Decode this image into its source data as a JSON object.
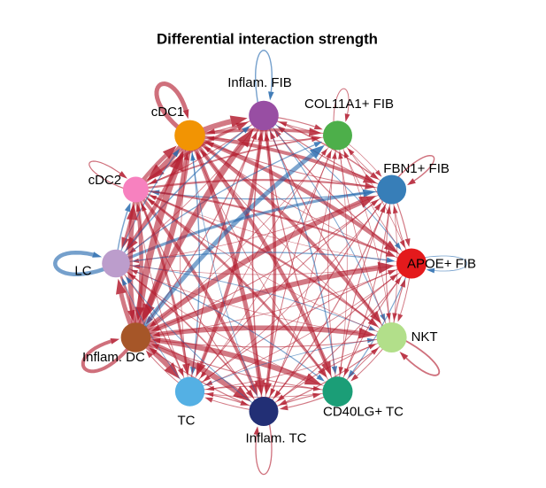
{
  "figure": {
    "title": "Differential interaction strength"
  },
  "chart_data": {
    "type": "network-circle",
    "title": "Differential interaction strength",
    "edge_color_meaning": {
      "red": "increased interaction strength",
      "blue": "decreased interaction strength"
    },
    "edge_colors": {
      "red": "#b2182b",
      "blue": "#2166ac"
    },
    "layout": {
      "center": [
        298,
        297.5
      ],
      "radius": 167,
      "start_angle_deg": 0,
      "direction": "counterclockwise"
    },
    "nodes": [
      {
        "label": "APOE+ FIB",
        "color": "#E41A1C",
        "radius": 17.0,
        "self_loop": {
          "color": "blue",
          "width": 0.8,
          "ext": 42
        }
      },
      {
        "label": "FBN1+ FIB",
        "color": "#377EB8",
        "radius": 16.5,
        "self_loop": {
          "color": "red",
          "width": 1.4,
          "ext": 40,
          "angle_offset": 8
        }
      },
      {
        "label": "COL11A1+ FIB",
        "color": "#4DAF4A",
        "radius": 16.5,
        "self_loop": {
          "color": "red",
          "width": 1.0,
          "ext": 34,
          "angle_offset": 22
        }
      },
      {
        "label": "Inflam. FIB",
        "color": "#984EA3",
        "radius": 16.8,
        "self_loop": {
          "color": "blue",
          "width": 1.4,
          "ext": 52
        }
      },
      {
        "label": "cDC1",
        "color": "#F29403",
        "radius": 17.3,
        "self_loop": {
          "color": "red",
          "width": 5.0,
          "ext": 52
        }
      },
      {
        "label": "cDC2",
        "color": "#F781BF",
        "radius": 14.5,
        "self_loop": {
          "color": "red",
          "width": 1.2,
          "ext": 42
        }
      },
      {
        "label": "LC",
        "color": "#BC9DCC",
        "radius": 15.8,
        "self_loop": {
          "color": "blue",
          "width": 4.5,
          "ext": 56
        }
      },
      {
        "label": "Inflam. DC",
        "color": "#A65628",
        "radius": 16.8,
        "self_loop": {
          "color": "red",
          "width": 4.0,
          "ext": 54
        }
      },
      {
        "label": "TC",
        "color": "#54B0E4",
        "radius": 16.6,
        "self_loop": null
      },
      {
        "label": "Inflam. TC",
        "color": "#222F75",
        "radius": 16.5,
        "self_loop": {
          "color": "red",
          "width": 1.3,
          "ext": 50
        }
      },
      {
        "label": "CD40LG+ TC",
        "color": "#1B9E77",
        "radius": 17.0,
        "self_loop": null
      },
      {
        "label": "NKT",
        "color": "#B2DF8A",
        "radius": 17.0,
        "self_loop": {
          "color": "red",
          "width": 1.8,
          "ext": 46,
          "angle_offset": -8
        }
      }
    ],
    "edges": [
      {
        "source": "APOE+ FIB",
        "target": "FBN1+ FIB",
        "width": 1.0,
        "color": "red"
      },
      {
        "source": "APOE+ FIB",
        "target": "COL11A1+ FIB",
        "width": 0.7,
        "color": "red"
      },
      {
        "source": "APOE+ FIB",
        "target": "Inflam. FIB",
        "width": 1.2,
        "color": "red"
      },
      {
        "source": "APOE+ FIB",
        "target": "cDC1",
        "width": 0.8,
        "color": "red"
      },
      {
        "source": "APOE+ FIB",
        "target": "cDC2",
        "width": 0.6,
        "color": "red"
      },
      {
        "source": "APOE+ FIB",
        "target": "LC",
        "width": 0.7,
        "color": "red"
      },
      {
        "source": "APOE+ FIB",
        "target": "Inflam. DC",
        "width": 0.8,
        "color": "red"
      },
      {
        "source": "APOE+ FIB",
        "target": "TC",
        "width": 0.8,
        "color": "red"
      },
      {
        "source": "APOE+ FIB",
        "target": "Inflam. TC",
        "width": 1.0,
        "color": "red"
      },
      {
        "source": "APOE+ FIB",
        "target": "CD40LG+ TC",
        "width": 1.2,
        "color": "blue"
      },
      {
        "source": "APOE+ FIB",
        "target": "NKT",
        "width": 1.0,
        "color": "red"
      },
      {
        "source": "FBN1+ FIB",
        "target": "APOE+ FIB",
        "width": 1.2,
        "color": "red"
      },
      {
        "source": "FBN1+ FIB",
        "target": "COL11A1+ FIB",
        "width": 0.8,
        "color": "red"
      },
      {
        "source": "FBN1+ FIB",
        "target": "Inflam. FIB",
        "width": 1.2,
        "color": "red"
      },
      {
        "source": "FBN1+ FIB",
        "target": "cDC1",
        "width": 1.0,
        "color": "red"
      },
      {
        "source": "FBN1+ FIB",
        "target": "cDC2",
        "width": 1.4,
        "color": "blue"
      },
      {
        "source": "FBN1+ FIB",
        "target": "LC",
        "width": 0.7,
        "color": "red"
      },
      {
        "source": "FBN1+ FIB",
        "target": "Inflam. DC",
        "width": 1.0,
        "color": "red"
      },
      {
        "source": "FBN1+ FIB",
        "target": "TC",
        "width": 0.8,
        "color": "red"
      },
      {
        "source": "FBN1+ FIB",
        "target": "Inflam. TC",
        "width": 1.2,
        "color": "red"
      },
      {
        "source": "FBN1+ FIB",
        "target": "CD40LG+ TC",
        "width": 1.0,
        "color": "red"
      },
      {
        "source": "FBN1+ FIB",
        "target": "NKT",
        "width": 0.8,
        "color": "red"
      },
      {
        "source": "COL11A1+ FIB",
        "target": "APOE+ FIB",
        "width": 0.8,
        "color": "red"
      },
      {
        "source": "COL11A1+ FIB",
        "target": "FBN1+ FIB",
        "width": 0.7,
        "color": "red"
      },
      {
        "source": "COL11A1+ FIB",
        "target": "Inflam. FIB",
        "width": 1.0,
        "color": "red"
      },
      {
        "source": "COL11A1+ FIB",
        "target": "cDC1",
        "width": 0.7,
        "color": "red"
      },
      {
        "source": "COL11A1+ FIB",
        "target": "Inflam. DC",
        "width": 0.7,
        "color": "red"
      },
      {
        "source": "COL11A1+ FIB",
        "target": "TC",
        "width": 0.7,
        "color": "red"
      },
      {
        "source": "COL11A1+ FIB",
        "target": "Inflam. TC",
        "width": 0.8,
        "color": "red"
      },
      {
        "source": "COL11A1+ FIB",
        "target": "CD40LG+ TC",
        "width": 0.7,
        "color": "red"
      },
      {
        "source": "COL11A1+ FIB",
        "target": "NKT",
        "width": 0.7,
        "color": "red"
      },
      {
        "source": "Inflam. FIB",
        "target": "APOE+ FIB",
        "width": 1.0,
        "color": "blue"
      },
      {
        "source": "Inflam. FIB",
        "target": "FBN1+ FIB",
        "width": 1.5,
        "color": "red"
      },
      {
        "source": "Inflam. FIB",
        "target": "COL11A1+ FIB",
        "width": 1.2,
        "color": "red"
      },
      {
        "source": "Inflam. FIB",
        "target": "cDC1",
        "width": 1.2,
        "color": "red"
      },
      {
        "source": "Inflam. FIB",
        "target": "cDC2",
        "width": 1.0,
        "color": "red"
      },
      {
        "source": "Inflam. FIB",
        "target": "LC",
        "width": 0.8,
        "color": "red"
      },
      {
        "source": "Inflam. FIB",
        "target": "Inflam. DC",
        "width": 1.2,
        "color": "red"
      },
      {
        "source": "Inflam. FIB",
        "target": "TC",
        "width": 4.0,
        "color": "red"
      },
      {
        "source": "Inflam. FIB",
        "target": "Inflam. TC",
        "width": 3.5,
        "color": "red"
      },
      {
        "source": "Inflam. FIB",
        "target": "CD40LG+ TC",
        "width": 1.4,
        "color": "blue"
      },
      {
        "source": "Inflam. FIB",
        "target": "NKT",
        "width": 1.0,
        "color": "blue"
      },
      {
        "source": "cDC1",
        "target": "APOE+ FIB",
        "width": 4.5,
        "color": "red"
      },
      {
        "source": "cDC1",
        "target": "FBN1+ FIB",
        "width": 4.0,
        "color": "red"
      },
      {
        "source": "cDC1",
        "target": "COL11A1+ FIB",
        "width": 3.5,
        "color": "red"
      },
      {
        "source": "cDC1",
        "target": "Inflam. FIB",
        "width": 6.0,
        "color": "red"
      },
      {
        "source": "cDC1",
        "target": "cDC2",
        "width": 6.5,
        "color": "red"
      },
      {
        "source": "cDC1",
        "target": "LC",
        "width": 4.5,
        "color": "red"
      },
      {
        "source": "cDC1",
        "target": "Inflam. DC",
        "width": 6.5,
        "color": "red"
      },
      {
        "source": "cDC1",
        "target": "TC",
        "width": 1.4,
        "color": "blue"
      },
      {
        "source": "cDC1",
        "target": "Inflam. TC",
        "width": 5.0,
        "color": "red"
      },
      {
        "source": "cDC1",
        "target": "CD40LG+ TC",
        "width": 4.5,
        "color": "red"
      },
      {
        "source": "cDC1",
        "target": "NKT",
        "width": 4.0,
        "color": "red"
      },
      {
        "source": "cDC2",
        "target": "APOE+ FIB",
        "width": 2.2,
        "color": "red"
      },
      {
        "source": "cDC2",
        "target": "FBN1+ FIB",
        "width": 2.2,
        "color": "red"
      },
      {
        "source": "cDC2",
        "target": "COL11A1+ FIB",
        "width": 1.8,
        "color": "red"
      },
      {
        "source": "cDC2",
        "target": "Inflam. FIB",
        "width": 3.2,
        "color": "red"
      },
      {
        "source": "cDC2",
        "target": "cDC1",
        "width": 4.5,
        "color": "red"
      },
      {
        "source": "cDC2",
        "target": "LC",
        "width": 3.0,
        "color": "red"
      },
      {
        "source": "cDC2",
        "target": "Inflam. DC",
        "width": 4.5,
        "color": "red"
      },
      {
        "source": "cDC2",
        "target": "TC",
        "width": 2.8,
        "color": "red"
      },
      {
        "source": "cDC2",
        "target": "Inflam. TC",
        "width": 3.8,
        "color": "red"
      },
      {
        "source": "cDC2",
        "target": "CD40LG+ TC",
        "width": 2.8,
        "color": "red"
      },
      {
        "source": "cDC2",
        "target": "NKT",
        "width": 2.2,
        "color": "red"
      },
      {
        "source": "LC",
        "target": "APOE+ FIB",
        "width": 1.3,
        "color": "blue"
      },
      {
        "source": "LC",
        "target": "FBN1+ FIB",
        "width": 3.2,
        "color": "blue"
      },
      {
        "source": "LC",
        "target": "COL11A1+ FIB",
        "width": 1.3,
        "color": "blue"
      },
      {
        "source": "LC",
        "target": "Inflam. FIB",
        "width": 1.5,
        "color": "blue"
      },
      {
        "source": "LC",
        "target": "cDC1",
        "width": 1.2,
        "color": "blue"
      },
      {
        "source": "LC",
        "target": "cDC2",
        "width": 1.5,
        "color": "blue"
      },
      {
        "source": "LC",
        "target": "Inflam. DC",
        "width": 2.8,
        "color": "red"
      },
      {
        "source": "LC",
        "target": "TC",
        "width": 1.2,
        "color": "red"
      },
      {
        "source": "LC",
        "target": "Inflam. TC",
        "width": 1.6,
        "color": "red"
      },
      {
        "source": "LC",
        "target": "CD40LG+ TC",
        "width": 1.2,
        "color": "blue"
      },
      {
        "source": "LC",
        "target": "NKT",
        "width": 0.9,
        "color": "blue"
      },
      {
        "source": "Inflam. DC",
        "target": "APOE+ FIB",
        "width": 6.0,
        "color": "red"
      },
      {
        "source": "Inflam. DC",
        "target": "FBN1+ FIB",
        "width": 6.0,
        "color": "red"
      },
      {
        "source": "Inflam. DC",
        "target": "COL11A1+ FIB",
        "width": 5.0,
        "color": "blue"
      },
      {
        "source": "Inflam. DC",
        "target": "Inflam. FIB",
        "width": 7.0,
        "color": "red"
      },
      {
        "source": "Inflam. DC",
        "target": "cDC1",
        "width": 7.5,
        "color": "red"
      },
      {
        "source": "Inflam. DC",
        "target": "cDC2",
        "width": 5.5,
        "color": "red"
      },
      {
        "source": "Inflam. DC",
        "target": "LC",
        "width": 5.0,
        "color": "red"
      },
      {
        "source": "Inflam. DC",
        "target": "TC",
        "width": 6.0,
        "color": "red"
      },
      {
        "source": "Inflam. DC",
        "target": "Inflam. TC",
        "width": 6.5,
        "color": "red"
      },
      {
        "source": "Inflam. DC",
        "target": "CD40LG+ TC",
        "width": 6.0,
        "color": "red"
      },
      {
        "source": "Inflam. DC",
        "target": "NKT",
        "width": 5.5,
        "color": "red"
      },
      {
        "source": "TC",
        "target": "APOE+ FIB",
        "width": 1.0,
        "color": "red"
      },
      {
        "source": "TC",
        "target": "FBN1+ FIB",
        "width": 1.0,
        "color": "red"
      },
      {
        "source": "TC",
        "target": "COL11A1+ FIB",
        "width": 0.8,
        "color": "red"
      },
      {
        "source": "TC",
        "target": "Inflam. FIB",
        "width": 1.2,
        "color": "red"
      },
      {
        "source": "TC",
        "target": "cDC1",
        "width": 0.8,
        "color": "red"
      },
      {
        "source": "TC",
        "target": "cDC2",
        "width": 0.8,
        "color": "red"
      },
      {
        "source": "TC",
        "target": "LC",
        "width": 0.8,
        "color": "blue"
      },
      {
        "source": "TC",
        "target": "Inflam. DC",
        "width": 1.0,
        "color": "red"
      },
      {
        "source": "TC",
        "target": "Inflam. TC",
        "width": 1.2,
        "color": "red"
      },
      {
        "source": "TC",
        "target": "CD40LG+ TC",
        "width": 1.0,
        "color": "red"
      },
      {
        "source": "TC",
        "target": "NKT",
        "width": 0.8,
        "color": "blue"
      },
      {
        "source": "Inflam. TC",
        "target": "APOE+ FIB",
        "width": 1.2,
        "color": "red"
      },
      {
        "source": "Inflam. TC",
        "target": "FBN1+ FIB",
        "width": 1.2,
        "color": "red"
      },
      {
        "source": "Inflam. TC",
        "target": "COL11A1+ FIB",
        "width": 1.0,
        "color": "red"
      },
      {
        "source": "Inflam. TC",
        "target": "Inflam. FIB",
        "width": 1.5,
        "color": "red"
      },
      {
        "source": "Inflam. TC",
        "target": "cDC1",
        "width": 0.8,
        "color": "blue"
      },
      {
        "source": "Inflam. TC",
        "target": "cDC2",
        "width": 1.0,
        "color": "red"
      },
      {
        "source": "Inflam. TC",
        "target": "LC",
        "width": 1.0,
        "color": "blue"
      },
      {
        "source": "Inflam. TC",
        "target": "Inflam. DC",
        "width": 1.2,
        "color": "red"
      },
      {
        "source": "Inflam. TC",
        "target": "TC",
        "width": 1.0,
        "color": "red"
      },
      {
        "source": "Inflam. TC",
        "target": "CD40LG+ TC",
        "width": 1.2,
        "color": "red"
      },
      {
        "source": "Inflam. TC",
        "target": "NKT",
        "width": 1.0,
        "color": "red"
      },
      {
        "source": "CD40LG+ TC",
        "target": "APOE+ FIB",
        "width": 1.0,
        "color": "red"
      },
      {
        "source": "CD40LG+ TC",
        "target": "FBN1+ FIB",
        "width": 1.0,
        "color": "red"
      },
      {
        "source": "CD40LG+ TC",
        "target": "COL11A1+ FIB",
        "width": 0.8,
        "color": "red"
      },
      {
        "source": "CD40LG+ TC",
        "target": "Inflam. FIB",
        "width": 1.2,
        "color": "red"
      },
      {
        "source": "CD40LG+ TC",
        "target": "cDC1",
        "width": 0.8,
        "color": "red"
      },
      {
        "source": "CD40LG+ TC",
        "target": "LC",
        "width": 0.7,
        "color": "red"
      },
      {
        "source": "CD40LG+ TC",
        "target": "Inflam. DC",
        "width": 1.0,
        "color": "red"
      },
      {
        "source": "CD40LG+ TC",
        "target": "TC",
        "width": 0.8,
        "color": "red"
      },
      {
        "source": "CD40LG+ TC",
        "target": "Inflam. TC",
        "width": 1.2,
        "color": "red"
      },
      {
        "source": "CD40LG+ TC",
        "target": "NKT",
        "width": 1.0,
        "color": "red"
      },
      {
        "source": "NKT",
        "target": "APOE+ FIB",
        "width": 1.2,
        "color": "red"
      },
      {
        "source": "NKT",
        "target": "FBN1+ FIB",
        "width": 1.0,
        "color": "red"
      },
      {
        "source": "NKT",
        "target": "COL11A1+ FIB",
        "width": 0.8,
        "color": "red"
      },
      {
        "source": "NKT",
        "target": "Inflam. FIB",
        "width": 1.2,
        "color": "red"
      },
      {
        "source": "NKT",
        "target": "cDC1",
        "width": 0.8,
        "color": "red"
      },
      {
        "source": "NKT",
        "target": "cDC2",
        "width": 0.7,
        "color": "red"
      },
      {
        "source": "NKT",
        "target": "LC",
        "width": 0.7,
        "color": "red"
      },
      {
        "source": "NKT",
        "target": "Inflam. DC",
        "width": 1.0,
        "color": "red"
      },
      {
        "source": "NKT",
        "target": "TC",
        "width": 0.8,
        "color": "red"
      },
      {
        "source": "NKT",
        "target": "Inflam. TC",
        "width": 1.2,
        "color": "red"
      },
      {
        "source": "NKT",
        "target": "CD40LG+ TC",
        "width": 1.0,
        "color": "red"
      }
    ]
  }
}
